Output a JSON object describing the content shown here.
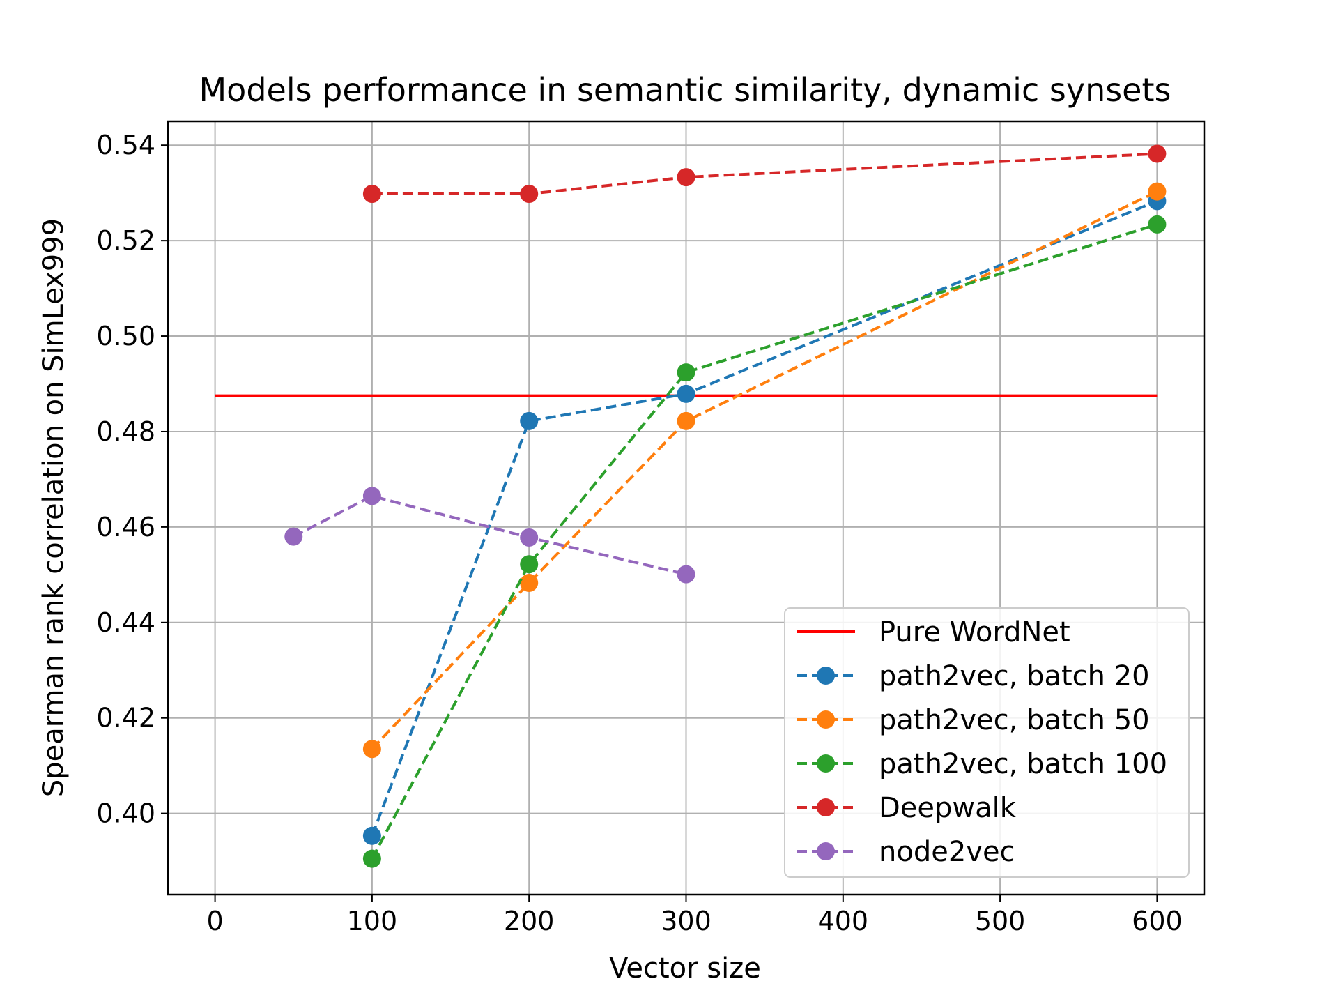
{
  "chart_data": {
    "type": "line",
    "title": "Models performance in semantic similarity, dynamic synsets",
    "xlabel": "Vector size",
    "ylabel": "Spearman rank correlation on SimLex999",
    "xlim": [
      -30,
      630
    ],
    "ylim": [
      0.383,
      0.545
    ],
    "xticks": [
      0,
      100,
      200,
      300,
      400,
      500,
      600
    ],
    "xtick_labels": [
      "0",
      "100",
      "200",
      "300",
      "400",
      "500",
      "600"
    ],
    "yticks": [
      0.4,
      0.42,
      0.44,
      0.46,
      0.48,
      0.5,
      0.52,
      0.54
    ],
    "ytick_labels": [
      "0.40",
      "0.42",
      "0.44",
      "0.46",
      "0.48",
      "0.50",
      "0.52",
      "0.54"
    ],
    "grid": true,
    "legend_position": "lower-right",
    "series": [
      {
        "name": "Pure WordNet",
        "color": "#ff0000",
        "style": "solid",
        "marker": false,
        "points": [
          [
            0,
            0.4875
          ],
          [
            600,
            0.4875
          ]
        ]
      },
      {
        "name": "path2vec, batch 20",
        "color": "#1f77b4",
        "style": "dashed",
        "marker": true,
        "points": [
          [
            100,
            0.3953
          ],
          [
            200,
            0.4822
          ],
          [
            300,
            0.4879
          ],
          [
            600,
            0.5283
          ]
        ]
      },
      {
        "name": "path2vec, batch 50",
        "color": "#ff7f0e",
        "style": "dashed",
        "marker": true,
        "points": [
          [
            100,
            0.4135
          ],
          [
            200,
            0.4483
          ],
          [
            300,
            0.4822
          ],
          [
            600,
            0.5303
          ]
        ]
      },
      {
        "name": "path2vec, batch 100",
        "color": "#2ca02c",
        "style": "dashed",
        "marker": true,
        "points": [
          [
            100,
            0.3905
          ],
          [
            200,
            0.4522
          ],
          [
            300,
            0.4924
          ],
          [
            600,
            0.5234
          ]
        ]
      },
      {
        "name": "Deepwalk",
        "color": "#d62728",
        "style": "dashed",
        "marker": true,
        "points": [
          [
            100,
            0.5298
          ],
          [
            200,
            0.5298
          ],
          [
            300,
            0.5333
          ],
          [
            600,
            0.5382
          ]
        ]
      },
      {
        "name": "node2vec",
        "color": "#9467bd",
        "style": "dashed",
        "marker": true,
        "points": [
          [
            50,
            0.458
          ],
          [
            100,
            0.4665
          ],
          [
            200,
            0.4578
          ],
          [
            300,
            0.4501
          ]
        ]
      }
    ]
  }
}
